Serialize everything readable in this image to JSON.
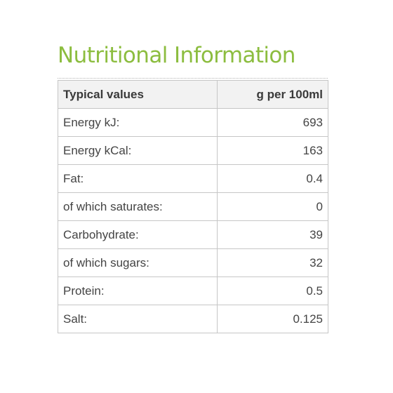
{
  "title": "Nutritional Information",
  "table": {
    "headers": [
      "Typical values",
      "g per 100ml"
    ],
    "rows": [
      {
        "label": "Energy kJ:",
        "value": "693"
      },
      {
        "label": "Energy kCal:",
        "value": "163"
      },
      {
        "label": "Fat:",
        "value": "0.4"
      },
      {
        "label": "of which saturates:",
        "value": "0"
      },
      {
        "label": "Carbohydrate:",
        "value": "39"
      },
      {
        "label": "of which sugars:",
        "value": "32"
      },
      {
        "label": "Protein:",
        "value": "0.5"
      },
      {
        "label": "Salt:",
        "value": "0.125"
      }
    ]
  },
  "colors": {
    "title": "#8cbd3f",
    "border": "#c6c6c6",
    "header_background": "#f2f2f2",
    "text": "#444444"
  }
}
